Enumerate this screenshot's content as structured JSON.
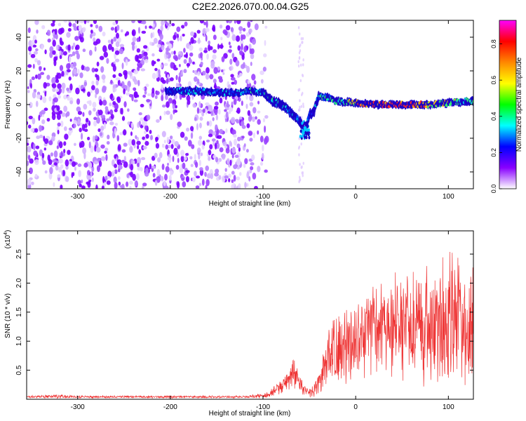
{
  "chart_data": [
    {
      "type": "heatmap",
      "title": "C2E2.2026.070.00.04.G25",
      "xlabel": "Height of straight line (km)",
      "ylabel": "Frequency (Hz)",
      "xlim": [
        -355,
        127
      ],
      "ylim": [
        -50,
        50
      ],
      "x_ticks": [
        -300,
        -200,
        -100,
        0,
        100
      ],
      "x_tick_labels": [
        "-300",
        "-200",
        "-100",
        "0",
        "100"
      ],
      "y_ticks": [
        -40,
        -20,
        0,
        20,
        40
      ],
      "y_tick_labels": [
        "-40",
        "-20",
        "0",
        "20",
        "40"
      ],
      "colorbar": {
        "label": "Normalized spectral amplitude",
        "range": [
          0.0,
          0.93
        ],
        "ticks": [
          0.0,
          0.2,
          0.4,
          0.6,
          0.8
        ],
        "tick_labels": [
          "0.0",
          "0.2",
          "0.4",
          "0.6",
          "0.8"
        ],
        "colors": [
          "#ff00ff",
          "#ff0000",
          "#ff8800",
          "#ffff00",
          "#00ff00",
          "#00ffff",
          "#0000ff",
          "#8800ff",
          "#ffffff"
        ]
      },
      "noise_region": {
        "x_range": [
          -355,
          -110
        ],
        "freq_range": [
          -50,
          50
        ],
        "level": 0.05
      },
      "signal_trace": {
        "x": [
          -205,
          -190,
          -170,
          -150,
          -130,
          -115,
          -100,
          -90,
          -80,
          -70,
          -60,
          -55,
          -50,
          -45,
          -40,
          -30,
          -20,
          0,
          20,
          40,
          60,
          80,
          100,
          120,
          127
        ],
        "freq": [
          8,
          8,
          8,
          7,
          7,
          8,
          7,
          2,
          0,
          -5,
          -10,
          -16,
          -6,
          -4,
          5,
          4,
          2,
          1,
          0,
          0,
          0,
          0,
          1,
          2,
          2
        ],
        "amplitude": [
          0.3,
          0.35,
          0.4,
          0.35,
          0.3,
          0.45,
          0.4,
          0.45,
          0.4,
          0.35,
          0.3,
          0.3,
          0.35,
          0.3,
          0.4,
          0.45,
          0.5,
          0.7,
          0.9,
          0.85,
          0.8,
          0.7,
          0.6,
          0.5,
          0.5
        ]
      }
    },
    {
      "type": "line",
      "xlabel": "Height of straight line (km)",
      "ylabel": "SNR (10 * v/v)",
      "y_multiplier": "(x10",
      "y_multiplier_exp": "4",
      "xlim": [
        -355,
        127
      ],
      "ylim": [
        0,
        2.9
      ],
      "x_ticks": [
        -300,
        -200,
        -100,
        0,
        100
      ],
      "x_tick_labels": [
        "-300",
        "-200",
        "-100",
        "0",
        "100"
      ],
      "y_ticks": [
        0.5,
        1.0,
        1.5,
        2.0,
        2.5
      ],
      "y_tick_labels": [
        "0.5",
        "1.0",
        "1.5",
        "2.0",
        "2.5"
      ],
      "color": "#ee3333",
      "series": [
        {
          "name": "SNR",
          "x": [
            -355,
            -320,
            -300,
            -250,
            -200,
            -150,
            -120,
            -110,
            -100,
            -95,
            -90,
            -85,
            -80,
            -75,
            -70,
            -68,
            -65,
            -62,
            -60,
            -55,
            -50,
            -45,
            -40,
            -35,
            -30,
            -25,
            -20,
            -10,
            0,
            10,
            20,
            30,
            40,
            50,
            60,
            70,
            80,
            90,
            100,
            110,
            120,
            127
          ],
          "mean": [
            0.04,
            0.05,
            0.04,
            0.04,
            0.04,
            0.04,
            0.04,
            0.05,
            0.06,
            0.08,
            0.12,
            0.18,
            0.22,
            0.3,
            0.4,
            0.5,
            0.4,
            0.3,
            0.25,
            0.15,
            0.12,
            0.15,
            0.25,
            0.45,
            0.7,
            0.85,
            0.9,
            0.85,
            1.0,
            1.1,
            1.15,
            1.2,
            1.25,
            1.2,
            1.3,
            1.3,
            1.3,
            1.35,
            1.35,
            1.3,
            1.35,
            1.3
          ],
          "spread": [
            0.02,
            0.03,
            0.02,
            0.02,
            0.02,
            0.02,
            0.02,
            0.03,
            0.04,
            0.05,
            0.08,
            0.1,
            0.12,
            0.15,
            0.2,
            0.25,
            0.2,
            0.15,
            0.12,
            0.08,
            0.08,
            0.1,
            0.2,
            0.35,
            0.5,
            0.55,
            0.6,
            0.6,
            0.65,
            0.7,
            0.75,
            0.8,
            0.85,
            0.85,
            0.9,
            0.95,
            1.0,
            1.05,
            1.1,
            1.1,
            1.1,
            1.1
          ]
        }
      ]
    }
  ]
}
